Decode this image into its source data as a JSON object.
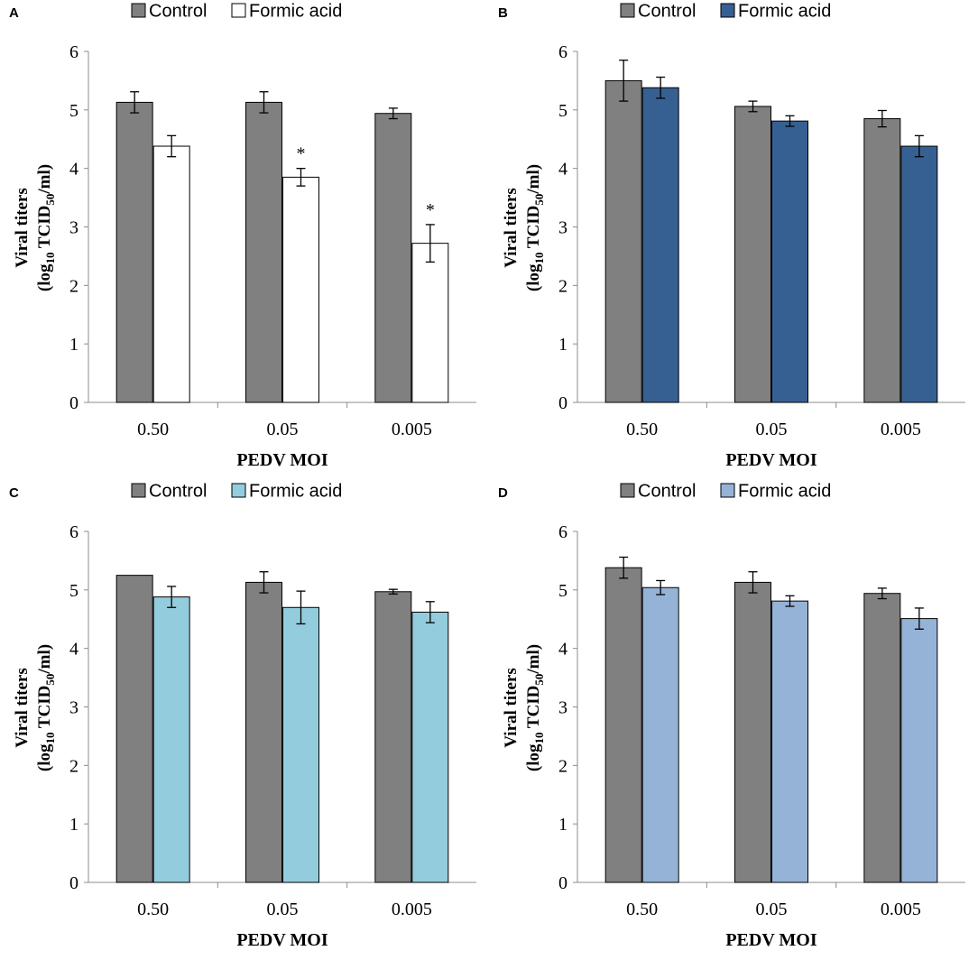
{
  "colors": {
    "control": "#808080",
    "border": "#000000",
    "axis": "#8c8c8c",
    "text": "#000000"
  },
  "chart_data": [
    {
      "type": "bar",
      "panel_label": "A",
      "categories": [
        "0.50",
        "0.05",
        "0.005"
      ],
      "xlabel": "PEDV MOI",
      "ylabel": {
        "line1": "Viral titers",
        "prefix": "(log",
        "sub1": "10",
        "mid": " TCID",
        "sub2": "50",
        "suffix": "/ml)"
      },
      "ylim": [
        0,
        6
      ],
      "yticks": [
        "0",
        "1",
        "2",
        "3",
        "4",
        "5",
        "6"
      ],
      "legend": "top",
      "series": [
        {
          "name": "Control",
          "color": "#808080",
          "values": [
            5.13,
            5.13,
            4.94
          ],
          "errors": [
            0.18,
            0.18,
            0.09
          ],
          "markers": [
            "",
            "",
            ""
          ]
        },
        {
          "name": "Formic acid",
          "color": "#ffffff",
          "values": [
            4.38,
            3.85,
            2.72
          ],
          "errors": [
            0.18,
            0.15,
            0.32
          ],
          "markers": [
            "",
            "*",
            "*"
          ]
        }
      ]
    },
    {
      "type": "bar",
      "panel_label": "B",
      "categories": [
        "0.50",
        "0.05",
        "0.005"
      ],
      "xlabel": "PEDV MOI",
      "ylabel": {
        "line1": "Viral titers",
        "prefix": "(log",
        "sub1": "10",
        "mid": " TCID",
        "sub2": "50",
        "suffix": "/ml)"
      },
      "ylim": [
        0,
        6
      ],
      "yticks": [
        "0",
        "1",
        "2",
        "3",
        "4",
        "5",
        "6"
      ],
      "legend": "top",
      "series": [
        {
          "name": "Control",
          "color": "#808080",
          "values": [
            5.5,
            5.06,
            4.85
          ],
          "errors": [
            0.35,
            0.09,
            0.14
          ],
          "markers": [
            "",
            "",
            ""
          ]
        },
        {
          "name": "Formic acid",
          "color": "#376092",
          "values": [
            5.38,
            4.81,
            4.38
          ],
          "errors": [
            0.18,
            0.09,
            0.18
          ],
          "markers": [
            "",
            "",
            ""
          ]
        }
      ]
    },
    {
      "type": "bar",
      "panel_label": "C",
      "categories": [
        "0.50",
        "0.05",
        "0.005"
      ],
      "xlabel": "PEDV MOI",
      "ylabel": {
        "line1": "Viral titers",
        "prefix": "(log",
        "sub1": "10",
        "mid": " TCID",
        "sub2": "50",
        "suffix": "/ml)"
      },
      "ylim": [
        0,
        6
      ],
      "yticks": [
        "0",
        "1",
        "2",
        "3",
        "4",
        "5",
        "6"
      ],
      "legend": "top",
      "series": [
        {
          "name": "Control",
          "color": "#808080",
          "values": [
            5.25,
            5.13,
            4.97
          ],
          "errors": [
            0,
            0.18,
            0.04
          ],
          "markers": [
            "",
            "",
            ""
          ]
        },
        {
          "name": "Formic acid",
          "color": "#93cddd",
          "values": [
            4.88,
            4.7,
            4.62
          ],
          "errors": [
            0.18,
            0.28,
            0.18
          ],
          "markers": [
            "",
            "",
            ""
          ]
        }
      ]
    },
    {
      "type": "bar",
      "panel_label": "D",
      "categories": [
        "0.50",
        "0.05",
        "0.005"
      ],
      "xlabel": "PEDV MOI",
      "ylabel": {
        "line1": "Viral titers",
        "prefix": "(log",
        "sub1": "10",
        "mid": " TCID",
        "sub2": "50",
        "suffix": "/ml)"
      },
      "ylim": [
        0,
        6
      ],
      "yticks": [
        "0",
        "1",
        "2",
        "3",
        "4",
        "5",
        "6"
      ],
      "legend": "top",
      "series": [
        {
          "name": "Control",
          "color": "#808080",
          "values": [
            5.38,
            5.13,
            4.94
          ],
          "errors": [
            0.18,
            0.18,
            0.09
          ],
          "markers": [
            "",
            "",
            ""
          ]
        },
        {
          "name": "Formic acid",
          "color": "#95b3d7",
          "values": [
            5.04,
            4.81,
            4.51
          ],
          "errors": [
            0.12,
            0.09,
            0.18
          ],
          "markers": [
            "",
            "",
            ""
          ]
        }
      ]
    }
  ]
}
